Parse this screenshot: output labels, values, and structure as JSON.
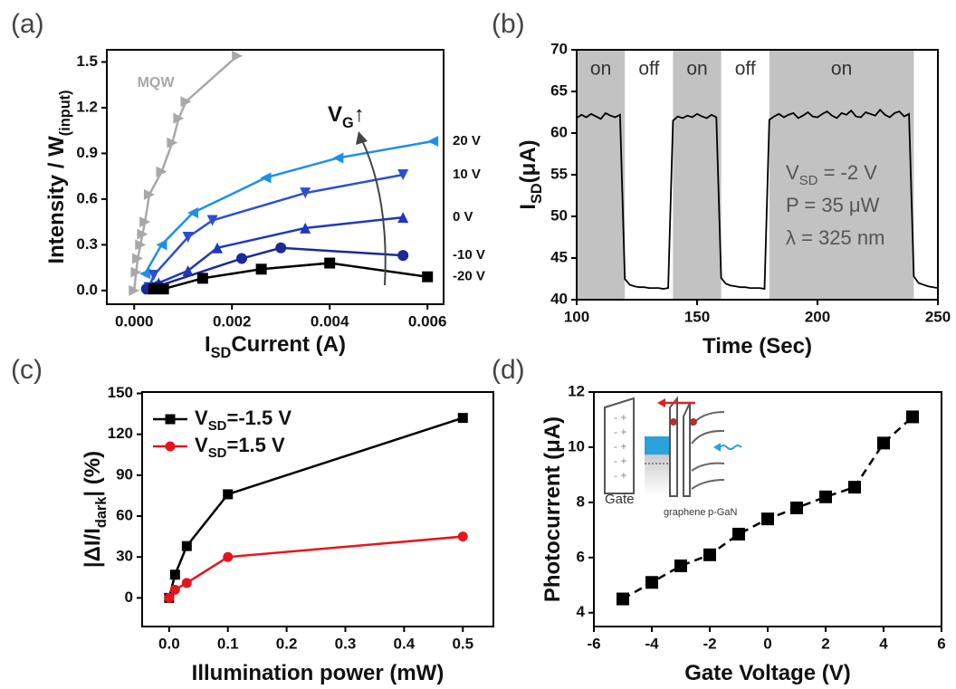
{
  "chart_data": [
    {
      "type": "line",
      "panel_label": "(a)",
      "xlabel": [
        "I",
        "SD",
        "Current (A)"
      ],
      "ylabel": [
        "Intensity  / W",
        "(input)"
      ],
      "annotation": [
        "V",
        "G",
        "↑"
      ],
      "xlim": [
        -0.00056,
        0.00633
      ],
      "ylim": [
        -0.09,
        1.58
      ],
      "xticks": [
        {
          "value": 0,
          "label": "0.000"
        },
        {
          "value": 0.002,
          "label": "0.002"
        },
        {
          "value": 0.004,
          "label": "0.004"
        },
        {
          "value": 0.006,
          "label": "0.006"
        }
      ],
      "yticks": [
        {
          "value": 0,
          "label": "0.0"
        },
        0.3,
        0.6,
        0.9,
        1.2,
        1.5
      ],
      "series": [
        {
          "name": "MQW",
          "color": "#a8a8a8",
          "marker": "triangle-right",
          "x": [
            0,
            4e-05,
            7e-05,
            0.00013,
            0.00017,
            0.00022,
            0.00031,
            0.00056,
            0.00078,
            0.00091,
            0.00106,
            0.00211
          ],
          "values": [
            0,
            0.12,
            0.21,
            0.3,
            0.37,
            0.45,
            0.63,
            0.78,
            0.97,
            1.13,
            1.24,
            1.54
          ]
        },
        {
          "name": "20 V",
          "color": "#1f8fe6",
          "marker": "triangle-left",
          "x": [
            0.00022,
            0.00056,
            0.0012,
            0.00269,
            0.00417,
            0.00611
          ],
          "values": [
            0.11,
            0.3,
            0.51,
            0.74,
            0.87,
            0.98
          ]
        },
        {
          "name": "10 V",
          "color": "#2a4fd2",
          "marker": "triangle-down",
          "x": [
            0.0003,
            0.0004,
            0.0011,
            0.0016,
            0.0035,
            0.0055
          ],
          "values": [
            0.02,
            0.1,
            0.35,
            0.46,
            0.64,
            0.76
          ]
        },
        {
          "name": "0 V",
          "color": "#1f37c0",
          "marker": "triangle-up",
          "x": [
            0.0003,
            0.0005,
            0.0011,
            0.0017,
            0.0035,
            0.0055
          ],
          "values": [
            0.01,
            0.05,
            0.13,
            0.28,
            0.41,
            0.48
          ]
        },
        {
          "name": "-10 V",
          "color": "#1a2a99",
          "marker": "circle",
          "x": [
            0.00025,
            0.0003,
            0.0004,
            0.0005,
            0.0022,
            0.003,
            0.0055
          ],
          "values": [
            0.01,
            0.01,
            0.02,
            0.03,
            0.21,
            0.28,
            0.23
          ]
        },
        {
          "name": "-20 V",
          "color": "#000000",
          "marker": "square",
          "x": [
            0.0004,
            0.0006,
            0.0014,
            0.0026,
            0.004,
            0.006
          ],
          "values": [
            0.01,
            0.01,
            0.08,
            0.14,
            0.18,
            0.09
          ]
        }
      ]
    },
    {
      "type": "line",
      "panel_label": "(b)",
      "xlabel": [
        "Time (Sec)"
      ],
      "ylabel": [
        "I",
        "SD",
        "(μA)"
      ],
      "xlim": [
        100,
        250
      ],
      "ylim": [
        40,
        70
      ],
      "xticks": [
        100,
        150,
        200,
        250
      ],
      "yticks": [
        40,
        45,
        50,
        55,
        60,
        65,
        70
      ],
      "spans": [
        [
          100,
          120
        ],
        [
          140,
          160
        ],
        [
          180,
          240
        ]
      ],
      "span_color": "#c2c2c2",
      "span_labels": [
        "on",
        "off",
        "on",
        "off",
        "on"
      ],
      "annotations": [
        [
          "V",
          "SD",
          " = -2 V"
        ],
        [
          "P = 35 μW"
        ],
        [
          "λ = 325 nm"
        ]
      ],
      "series": [
        {
          "color": "#000000",
          "x": [
            100,
            102,
            104,
            106,
            108,
            110,
            112,
            114,
            116,
            118,
            120,
            122,
            124,
            126,
            128,
            130,
            132,
            134,
            136,
            138,
            140,
            142,
            144,
            146,
            148,
            150,
            152,
            154,
            156,
            158,
            160,
            162,
            164,
            166,
            168,
            170,
            172,
            174,
            176,
            178,
            180,
            182,
            184,
            186,
            188,
            190,
            192,
            194,
            196,
            198,
            200,
            202,
            204,
            206,
            208,
            210,
            212,
            214,
            216,
            218,
            220,
            222,
            224,
            226,
            228,
            230,
            232,
            234,
            236,
            238,
            240,
            242,
            244,
            246,
            248,
            250
          ],
          "values": [
            61.8,
            62.2,
            61.9,
            62.3,
            62.0,
            61.7,
            62.4,
            62.1,
            61.9,
            62.2,
            42.5,
            41.8,
            41.6,
            41.5,
            41.5,
            41.4,
            41.4,
            41.4,
            41.3,
            41.4,
            61.5,
            62.0,
            61.8,
            62.1,
            61.9,
            62.3,
            62.0,
            61.8,
            62.2,
            61.9,
            42.6,
            41.9,
            41.7,
            41.6,
            41.5,
            41.5,
            41.4,
            41.4,
            41.4,
            41.3,
            61.6,
            62.0,
            62.3,
            61.9,
            62.2,
            62.4,
            61.8,
            62.1,
            62.5,
            62.0,
            61.9,
            62.3,
            62.6,
            62.1,
            61.8,
            62.4,
            62.2,
            62.7,
            62.0,
            61.9,
            62.5,
            62.3,
            62.1,
            62.8,
            62.2,
            61.9,
            62.4,
            62.6,
            62.0,
            62.3,
            42.8,
            42.0,
            41.8,
            41.6,
            41.5,
            41.4
          ]
        }
      ]
    },
    {
      "type": "line",
      "panel_label": "(c)",
      "xlabel": [
        "Illumination power (mW)"
      ],
      "ylabel": [
        "|ΔI/I",
        "dark",
        "| (%)"
      ],
      "xlim": [
        -0.046,
        0.552
      ],
      "ylim": [
        -21,
        151
      ],
      "xticks": [
        {
          "value": 0,
          "label": "0.0"
        },
        0.1,
        0.2,
        0.3,
        0.4,
        0.5
      ],
      "yticks": [
        0,
        30,
        60,
        90,
        120,
        150
      ],
      "legend": "upper left",
      "series": [
        {
          "name": [
            "V",
            "SD",
            "=-1.5 V"
          ],
          "color": "#000000",
          "marker": "square",
          "x": [
            0,
            0.01,
            0.03,
            0.1,
            0.5
          ],
          "values": [
            0,
            17,
            38,
            76,
            132
          ]
        },
        {
          "name": [
            "V",
            "SD",
            "=1.5 V"
          ],
          "color": "#e8141b",
          "marker": "circle",
          "x": [
            0,
            0.01,
            0.03,
            0.1,
            0.5
          ],
          "values": [
            0,
            6,
            11,
            30,
            45
          ]
        }
      ]
    },
    {
      "type": "line",
      "panel_label": "(d)",
      "xlabel": [
        "Gate Voltage (V)"
      ],
      "ylabel": [
        "Photocurrent (μA)"
      ],
      "xlim": [
        -6,
        6
      ],
      "ylim": [
        3.5,
        12
      ],
      "xticks": [
        -6,
        -4,
        -2,
        0,
        2,
        4,
        6
      ],
      "yticks": [
        4,
        6,
        8,
        10,
        12
      ],
      "line_style": "dashed",
      "inset_labels": [
        "Gate",
        "graphene",
        "p-GaN"
      ],
      "series": [
        {
          "color": "#000000",
          "marker": "square",
          "x": [
            -5,
            -4,
            -3,
            -2,
            -1,
            0,
            1,
            2,
            3,
            4,
            5
          ],
          "values": [
            4.5,
            5.1,
            5.7,
            6.1,
            6.85,
            7.4,
            7.8,
            8.2,
            8.55,
            10.15,
            11.1
          ]
        }
      ]
    }
  ]
}
